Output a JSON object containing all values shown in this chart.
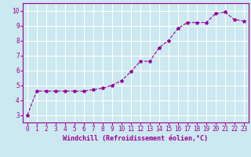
{
  "x": [
    0,
    1,
    2,
    3,
    4,
    5,
    6,
    7,
    8,
    9,
    10,
    11,
    12,
    13,
    14,
    15,
    16,
    17,
    18,
    19,
    20,
    21,
    22,
    23
  ],
  "y": [
    3.0,
    4.6,
    4.6,
    4.6,
    4.6,
    4.6,
    4.6,
    4.7,
    4.8,
    5.0,
    5.3,
    5.9,
    6.6,
    6.6,
    7.5,
    8.0,
    8.8,
    9.2,
    9.2,
    9.2,
    9.8,
    9.9,
    9.4,
    9.3
  ],
  "line_color": "#990099",
  "marker": "*",
  "marker_size": 3,
  "xlabel": "Windchill (Refroidissement éolien,°C)",
  "xlabel_fontsize": 6,
  "xlim": [
    -0.5,
    23.5
  ],
  "ylim": [
    2.5,
    10.5
  ],
  "yticks": [
    3,
    4,
    5,
    6,
    7,
    8,
    9,
    10
  ],
  "xticks": [
    0,
    1,
    2,
    3,
    4,
    5,
    6,
    7,
    8,
    9,
    10,
    11,
    12,
    13,
    14,
    15,
    16,
    17,
    18,
    19,
    20,
    21,
    22,
    23
  ],
  "background_color": "#cce8f0",
  "grid_color": "#ffffff",
  "axis_color": "#990099",
  "tick_label_color": "#990099",
  "tick_label_fontsize": 5.5,
  "line_style": "--",
  "line_width": 0.8
}
